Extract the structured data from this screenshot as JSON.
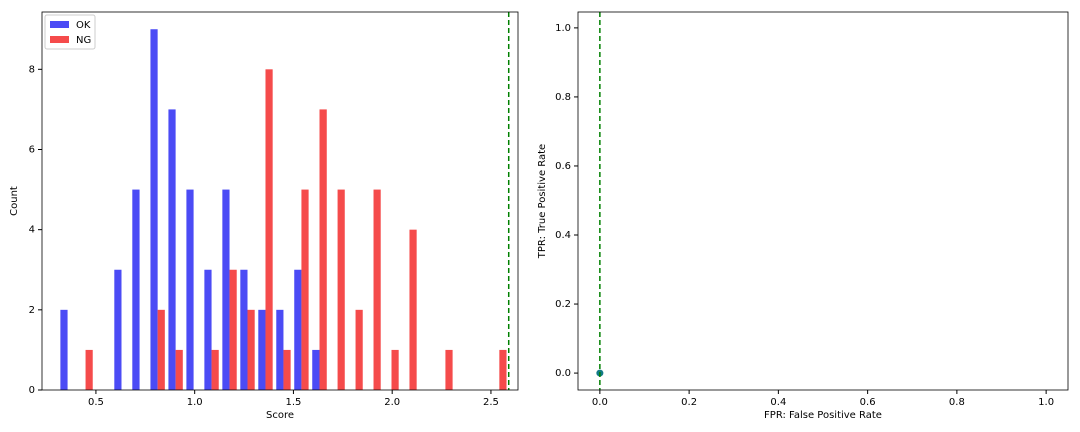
{
  "chart_data": [
    {
      "type": "histogram",
      "xlabel": "Score",
      "ylabel": "Count",
      "bins": [
        0.311,
        0.402,
        0.493,
        0.584,
        0.675,
        0.767,
        0.858,
        0.949,
        1.04,
        1.131,
        1.222,
        1.313,
        1.404,
        1.495,
        1.586,
        1.678,
        1.769,
        1.86,
        1.951,
        2.042,
        2.133,
        2.224,
        2.315,
        2.406,
        2.497,
        2.588
      ],
      "series": [
        {
          "name": "OK",
          "color": "#4b4bf5",
          "values": [
            2,
            0,
            0,
            3,
            5,
            9,
            7,
            5,
            3,
            5,
            3,
            2,
            2,
            3,
            1,
            0,
            0,
            0,
            0,
            0,
            0,
            0,
            0,
            0,
            0
          ]
        },
        {
          "name": "NG",
          "color": "#f54b4b",
          "values": [
            0,
            1,
            0,
            0,
            0,
            2,
            1,
            0,
            1,
            3,
            2,
            8,
            1,
            5,
            7,
            5,
            2,
            5,
            1,
            4,
            0,
            1,
            0,
            0,
            1
          ]
        }
      ],
      "vlines": [
        2.59
      ],
      "vline_color": "#008000",
      "xlim": [
        0.227,
        2.637
      ],
      "ylim": [
        0,
        9.43
      ],
      "xticks": [
        0.5,
        {
          "value": 1,
          "label": "1.0"
        },
        1.5,
        {
          "value": 2,
          "label": "2.0"
        },
        2.5
      ],
      "yticks": [
        0,
        2,
        4,
        6,
        8
      ],
      "legend": "upper-left"
    },
    {
      "type": "scatter",
      "xlabel": "FPR: False Positive Rate",
      "ylabel": "TPR: True Positive Rate",
      "x": [
        0
      ],
      "y": [
        0
      ],
      "color": "#127a86",
      "vlines": [
        0
      ],
      "vline_color": "#008000",
      "xlim": [
        -0.049,
        1.049
      ],
      "ylim": [
        -0.049,
        1.046
      ],
      "xticks": [
        {
          "value": 0,
          "label": "0.0"
        },
        0.2,
        0.4,
        0.6,
        0.8,
        {
          "value": 1,
          "label": "1.0"
        }
      ],
      "yticks": [
        {
          "value": 0,
          "label": "0.0"
        },
        0.2,
        0.4,
        0.6,
        0.8,
        {
          "value": 1,
          "label": "1.0"
        }
      ]
    }
  ]
}
